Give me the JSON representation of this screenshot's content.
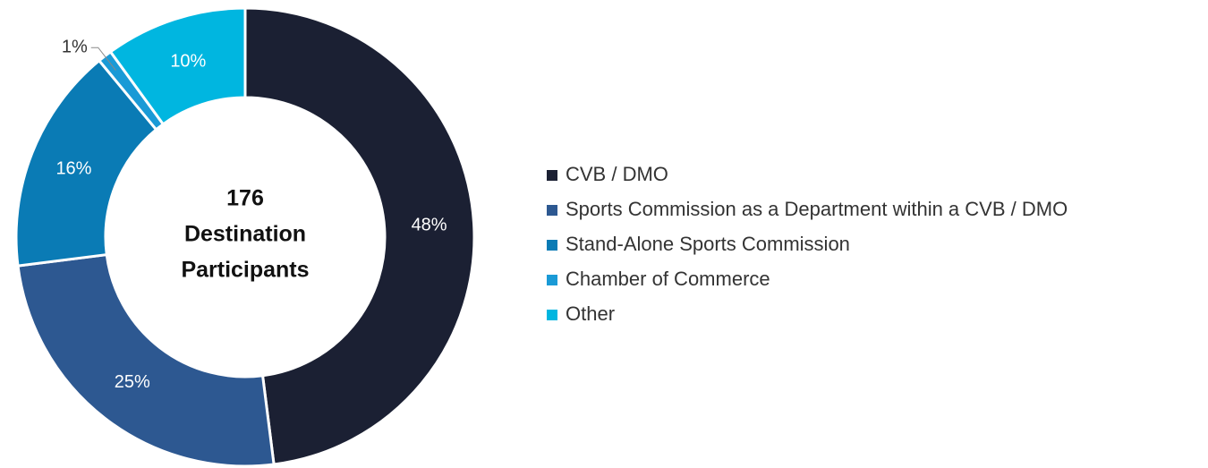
{
  "chart_data": {
    "type": "donut",
    "center_label": [
      "176",
      "Destination",
      "Participants"
    ],
    "categories": [
      "CVB / DMO",
      "Sports Commission as a Department within a CVB / DMO",
      "Stand-Alone Sports Commission",
      "Chamber of Commerce",
      "Other"
    ],
    "values": [
      48,
      25,
      16,
      1,
      10
    ],
    "value_labels": [
      "48%",
      "25%",
      "16%",
      "1%",
      "10%"
    ],
    "colors": [
      "#1b2033",
      "#2d5891",
      "#0a7bb5",
      "#1a9ad6",
      "#00b6e0"
    ],
    "legend": "right"
  }
}
